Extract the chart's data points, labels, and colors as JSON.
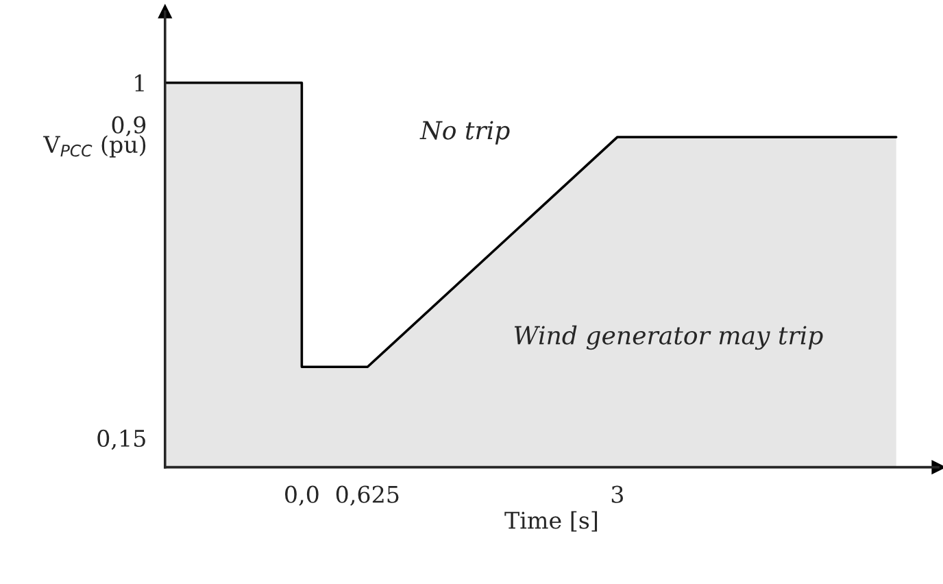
{
  "chart_data": {
    "type": "area",
    "xlabel": "Time [s]",
    "ylabel": "V$_{PCC}$ (pu)",
    "x": [
      -1.29,
      0,
      0,
      0.625,
      3,
      5.65
    ],
    "series": [
      {
        "color": "#e6e6e6",
        "values": [
          1,
          1,
          0.32,
          0.32,
          0.87,
          0.87
        ]
      }
    ],
    "xlim": [
      -1.3,
      6.05
    ],
    "ylim": [
      0.08,
      1.17
    ],
    "xticks": [
      {
        "value": 0,
        "label": "0,0"
      },
      {
        "value": 0.625,
        "label": "0,625"
      },
      3
    ],
    "yticks": [
      {
        "value": 0.15,
        "label": "0,15"
      },
      {
        "value": 0.9,
        "label": "0,9"
      },
      1
    ],
    "annotations": [
      "No trip",
      "Wind generator may trip"
    ],
    "grid": false,
    "legend": false
  }
}
